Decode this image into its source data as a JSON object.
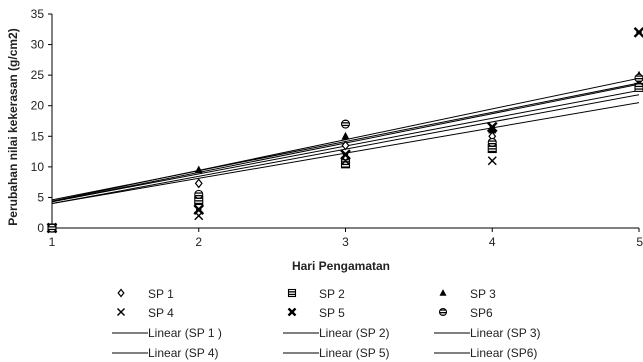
{
  "chart_data": {
    "type": "scatter",
    "xlabel": "Hari Pengamatan",
    "ylabel": "Perubahan nilai kekerasan (g/cm2)",
    "xlim": [
      1,
      5
    ],
    "ylim": [
      0,
      35
    ],
    "x_ticks": [
      "1",
      "2",
      "3",
      "4",
      "5"
    ],
    "y_ticks": [
      "0",
      "5",
      "10",
      "15",
      "20",
      "25",
      "30",
      "35"
    ],
    "grid": false,
    "legend_position": "bottom",
    "series": [
      {
        "name": "SP 1",
        "marker": "diamond-open",
        "x": [
          1,
          2,
          3,
          4,
          5
        ],
        "y": [
          0,
          7.3,
          13.5,
          15,
          24.5
        ]
      },
      {
        "name": "SP 2",
        "marker": "square-hatch",
        "x": [
          1,
          2,
          3,
          4,
          5
        ],
        "y": [
          0,
          4.5,
          10.5,
          13,
          23
        ]
      },
      {
        "name": "SP 3",
        "marker": "triangle",
        "x": [
          1,
          2,
          3,
          4,
          5
        ],
        "y": [
          0,
          9.5,
          15,
          16,
          25
        ]
      },
      {
        "name": "SP 4",
        "marker": "x",
        "x": [
          1,
          2,
          3,
          4,
          5
        ],
        "y": [
          0,
          2,
          11,
          11,
          24
        ]
      },
      {
        "name": "SP 5",
        "marker": "star",
        "x": [
          1,
          2,
          3,
          4,
          5
        ],
        "y": [
          0,
          3,
          12,
          16.5,
          32
        ]
      },
      {
        "name": "SP6",
        "marker": "circle-hatch",
        "x": [
          1,
          2,
          3,
          4,
          5
        ],
        "y": [
          0,
          5.5,
          17,
          14,
          24.5
        ]
      }
    ],
    "trendlines": [
      {
        "name": "Linear (SP 1 )",
        "y_at_x1": 4.3,
        "y_at_x5": 23.5
      },
      {
        "name": "Linear (SP 2)",
        "y_at_x1": 4.0,
        "y_at_x5": 20.5
      },
      {
        "name": "Linear (SP 3)",
        "y_at_x1": 4.6,
        "y_at_x5": 23.7
      },
      {
        "name": "Linear (SP 4)",
        "y_at_x1": 4.0,
        "y_at_x5": 21.8
      },
      {
        "name": "Linear (SP 5)",
        "y_at_x1": 4.4,
        "y_at_x5": 24.5
      },
      {
        "name": "Linear (SP6)",
        "y_at_x1": 4.3,
        "y_at_x5": 22.5
      }
    ]
  }
}
